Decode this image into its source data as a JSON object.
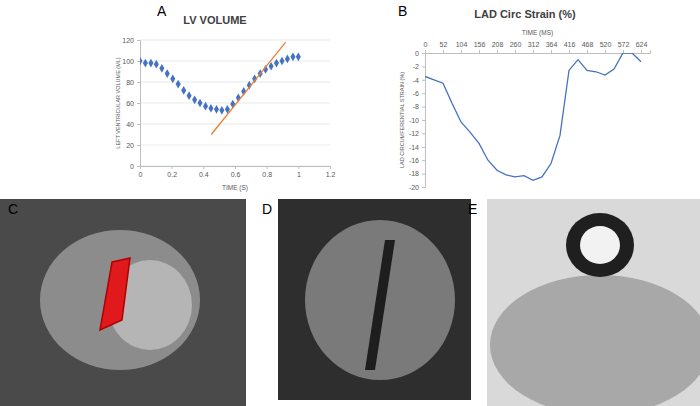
{
  "panels": [
    "A",
    "B",
    "C",
    "D",
    "E"
  ],
  "chart_data": [
    {
      "type": "scatter",
      "title": "LV VOLUME",
      "x_label": "TIME (S)",
      "y_label": "LEFT VENTRICULAR VOLUME (ML)",
      "xlim": [
        0,
        1.2
      ],
      "xticks": [
        0,
        0.2,
        0.4,
        0.6,
        0.8,
        1,
        1.2
      ],
      "ylim": [
        0,
        120
      ],
      "yticks": [
        0,
        20,
        40,
        60,
        80,
        100,
        120
      ],
      "grid": true,
      "series": [
        {
          "type": "scatter",
          "marker": "diamond",
          "color": "#4472c4",
          "x": [
            0,
            0.034,
            0.069,
            0.103,
            0.138,
            0.172,
            0.207,
            0.241,
            0.276,
            0.31,
            0.345,
            0.379,
            0.414,
            0.448,
            0.483,
            0.517,
            0.552,
            0.586,
            0.621,
            0.655,
            0.69,
            0.724,
            0.759,
            0.793,
            0.828,
            0.862,
            0.897,
            0.931,
            0.966,
            1.0
          ],
          "values": [
            100,
            98,
            98,
            97,
            93,
            88,
            83,
            78,
            72,
            67,
            63,
            60,
            57,
            55,
            54,
            53,
            54,
            59,
            65,
            71,
            77,
            83,
            88,
            92,
            95,
            98,
            100,
            102,
            104,
            104
          ]
        },
        {
          "type": "line",
          "color": "#ed7d31",
          "x": [
            0.45,
            0.92
          ],
          "values": [
            30,
            118
          ]
        }
      ]
    },
    {
      "type": "line",
      "title": "LAD Circ Strain (%)",
      "x_label": "TIME (MS)",
      "y_label": "LAD CIRCUMFERENTIAL STRAIN (%)",
      "xlim": [
        0,
        650
      ],
      "xticks": [
        0,
        52,
        104,
        156,
        208,
        260,
        312,
        364,
        416,
        468,
        520,
        572,
        624
      ],
      "ylim": [
        -20,
        0
      ],
      "yticks": [
        0,
        -2,
        -4,
        -6,
        -8,
        -10,
        -12,
        -14,
        -16,
        -18,
        -20
      ],
      "grid": false,
      "color": "#4472c4",
      "x": [
        0,
        26,
        52,
        78,
        104,
        130,
        156,
        182,
        208,
        234,
        260,
        286,
        312,
        338,
        364,
        390,
        416,
        442,
        468,
        494,
        520,
        546,
        572,
        598,
        624
      ],
      "values": [
        -3.5,
        -4,
        -4.5,
        -7.5,
        -10.3,
        -11.8,
        -13.5,
        -16,
        -17.5,
        -18.2,
        -18.5,
        -18.3,
        -19,
        -18.5,
        -16.5,
        -12.3,
        -2.6,
        -1,
        -2.6,
        -2.8,
        -3.3,
        -2.4,
        0,
        0,
        -1.3
      ]
    }
  ]
}
